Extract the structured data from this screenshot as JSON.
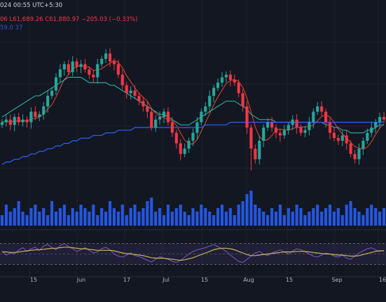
{
  "header": {
    "datetime": "024 00:55 UTC+5:30",
    "ohlc_partial": "06 L61,689.26 C61,880.97 −205.03 (−0.33%)",
    "indicator_partial": "59.0 37"
  },
  "colors": {
    "background": "#131722",
    "up": "#26a69a",
    "down": "#f23645",
    "ma_fast": "#e0482f",
    "ma_mid": "#26a69a",
    "ma_slow": "#2962ff",
    "volume": "#2962ff",
    "rsi": "#7e57c2",
    "rsi_ma": "#c9b458",
    "band": "#7e57c2"
  },
  "chart_data": {
    "type": "candlestick",
    "x_tick_labels": [
      "15",
      "Jun",
      "17",
      "Jul",
      "15",
      "Aug",
      "15",
      "Sep",
      "16"
    ],
    "series": [
      {
        "values": [
          0.62,
          0.63,
          0.61,
          0.64,
          0.62,
          0.63,
          0.62,
          0.66,
          0.64,
          0.65,
          0.68,
          0.72,
          0.74,
          0.79,
          0.82,
          0.84,
          0.81,
          0.85,
          0.83,
          0.84,
          0.82,
          0.8,
          0.79,
          0.84,
          0.86,
          0.88,
          0.85,
          0.84,
          0.8,
          0.76,
          0.73,
          0.74,
          0.72,
          0.7,
          0.68,
          0.66,
          0.6,
          0.63,
          0.64,
          0.66,
          0.62,
          0.58,
          0.54,
          0.5,
          0.52,
          0.55,
          0.58,
          0.62,
          0.66,
          0.68,
          0.72,
          0.75,
          0.77,
          0.79,
          0.8,
          0.78,
          0.77,
          0.73,
          0.68,
          0.6,
          0.52,
          0.48,
          0.55,
          0.6,
          0.62,
          0.6,
          0.58,
          0.57,
          0.59,
          0.61,
          0.63,
          0.6,
          0.58,
          0.59,
          0.62,
          0.66,
          0.68,
          0.66,
          0.62,
          0.58,
          0.56,
          0.55,
          0.57,
          0.54,
          0.5,
          0.48,
          0.52,
          0.55,
          0.58,
          0.6,
          0.62,
          0.64,
          0.63
        ]
      },
      {
        "values": [
          0.64,
          0.65,
          0.66,
          0.67,
          0.68,
          0.69,
          0.7,
          0.71,
          0.72,
          0.72,
          0.73,
          0.74,
          0.75,
          0.76,
          0.77,
          0.78,
          0.79,
          0.79,
          0.79,
          0.79,
          0.78,
          0.77,
          0.77,
          0.77,
          0.77,
          0.77,
          0.76,
          0.76,
          0.75,
          0.74,
          0.73,
          0.72,
          0.71,
          0.7,
          0.69,
          0.68,
          0.67,
          0.66,
          0.65,
          0.65,
          0.64,
          0.63,
          0.62,
          0.61,
          0.61,
          0.61,
          0.62,
          0.63,
          0.64,
          0.65,
          0.66,
          0.67,
          0.68,
          0.69,
          0.7,
          0.7,
          0.7,
          0.69,
          0.68,
          0.67,
          0.65,
          0.64,
          0.63,
          0.63,
          0.63,
          0.63,
          0.62,
          0.62,
          0.62,
          0.62,
          0.62,
          0.62,
          0.62,
          0.62,
          0.62,
          0.62,
          0.62,
          0.62,
          0.61,
          0.61,
          0.6,
          0.6,
          0.59,
          0.59,
          0.58,
          0.58,
          0.58,
          0.58,
          0.59,
          0.59,
          0.6,
          0.61,
          0.61
        ]
      },
      {
        "values": [
          0.46,
          0.47,
          0.47,
          0.48,
          0.48,
          0.49,
          0.49,
          0.5,
          0.5,
          0.51,
          0.51,
          0.52,
          0.52,
          0.53,
          0.53,
          0.54,
          0.54,
          0.55,
          0.55,
          0.56,
          0.56,
          0.56,
          0.57,
          0.57,
          0.57,
          0.58,
          0.58,
          0.58,
          0.59,
          0.59,
          0.59,
          0.59,
          0.6,
          0.6,
          0.6,
          0.6,
          0.6,
          0.6,
          0.6,
          0.6,
          0.6,
          0.6,
          0.6,
          0.6,
          0.6,
          0.6,
          0.6,
          0.6,
          0.6,
          0.61,
          0.61,
          0.61,
          0.61,
          0.61,
          0.61,
          0.62,
          0.62,
          0.62,
          0.62,
          0.62,
          0.62,
          0.62,
          0.62,
          0.62,
          0.62,
          0.62,
          0.62,
          0.62,
          0.62,
          0.62,
          0.62,
          0.62,
          0.62,
          0.62,
          0.62,
          0.62,
          0.62,
          0.62,
          0.62,
          0.62,
          0.62,
          0.62,
          0.62,
          0.62,
          0.62,
          0.62,
          0.62,
          0.62,
          0.62,
          0.62,
          0.62,
          0.62,
          0.62
        ]
      },
      {
        "values": [
          0.3,
          0.6,
          0.4,
          0.5,
          0.7,
          0.4,
          0.3,
          0.5,
          0.6,
          0.4,
          0.5,
          0.3,
          0.7,
          0.4,
          0.5,
          0.6,
          0.3,
          0.5,
          0.4,
          0.6,
          0.5,
          0.4,
          0.6,
          0.3,
          0.5,
          0.4,
          0.7,
          0.5,
          0.4,
          0.6,
          0.3,
          0.5,
          0.6,
          0.4,
          0.5,
          0.7,
          0.8,
          0.4,
          0.5,
          0.3,
          0.6,
          0.4,
          0.5,
          0.6,
          0.4,
          0.3,
          0.5,
          0.4,
          0.6,
          0.5,
          0.4,
          0.3,
          0.5,
          0.6,
          0.4,
          0.5,
          0.3,
          0.6,
          0.7,
          0.9,
          1.0,
          0.6,
          0.5,
          0.4,
          0.3,
          0.5,
          0.4,
          0.6,
          0.3,
          0.5,
          0.4,
          0.6,
          0.5,
          0.3,
          0.4,
          0.5,
          0.6,
          0.4,
          0.5,
          0.6,
          0.4,
          0.5,
          0.3,
          0.6,
          0.7,
          0.5,
          0.4,
          0.3,
          0.5,
          0.6,
          0.5,
          0.4,
          0.5
        ]
      },
      {
        "values": [
          55,
          48,
          52,
          50,
          58,
          62,
          55,
          60,
          63,
          57,
          65,
          68,
          62,
          58,
          66,
          70,
          64,
          60,
          55,
          58,
          62,
          57,
          52,
          54,
          60,
          63,
          58,
          50,
          46,
          44,
          48,
          52,
          47,
          45,
          42,
          38,
          35,
          40,
          45,
          42,
          40,
          36,
          34,
          38,
          44,
          50,
          55,
          58,
          60,
          62,
          65,
          68,
          64,
          60,
          55,
          48,
          42,
          36,
          34,
          40,
          46,
          52,
          55,
          50,
          47,
          52,
          55,
          58,
          54,
          50,
          56,
          60,
          58,
          54,
          50,
          46,
          44,
          48,
          52,
          50,
          46,
          44,
          48,
          42,
          40,
          46,
          52,
          56,
          60,
          62,
          58,
          55,
          57
        ]
      },
      {
        "values": [
          54,
          54,
          53,
          53,
          54,
          55,
          56,
          57,
          58,
          58,
          59,
          60,
          61,
          61,
          62,
          63,
          63,
          62,
          61,
          60,
          60,
          59,
          58,
          57,
          57,
          57,
          57,
          56,
          54,
          52,
          51,
          50,
          49,
          48,
          47,
          45,
          43,
          42,
          42,
          42,
          41,
          40,
          39,
          38,
          39,
          41,
          43,
          46,
          49,
          52,
          55,
          58,
          60,
          61,
          61,
          60,
          58,
          55,
          52,
          49,
          47,
          47,
          48,
          49,
          50,
          51,
          52,
          53,
          54,
          54,
          54,
          55,
          55,
          55,
          54,
          53,
          52,
          51,
          50,
          50,
          49,
          48,
          48,
          47,
          46,
          46,
          47,
          49,
          51,
          53,
          55,
          56,
          56
        ]
      }
    ]
  }
}
